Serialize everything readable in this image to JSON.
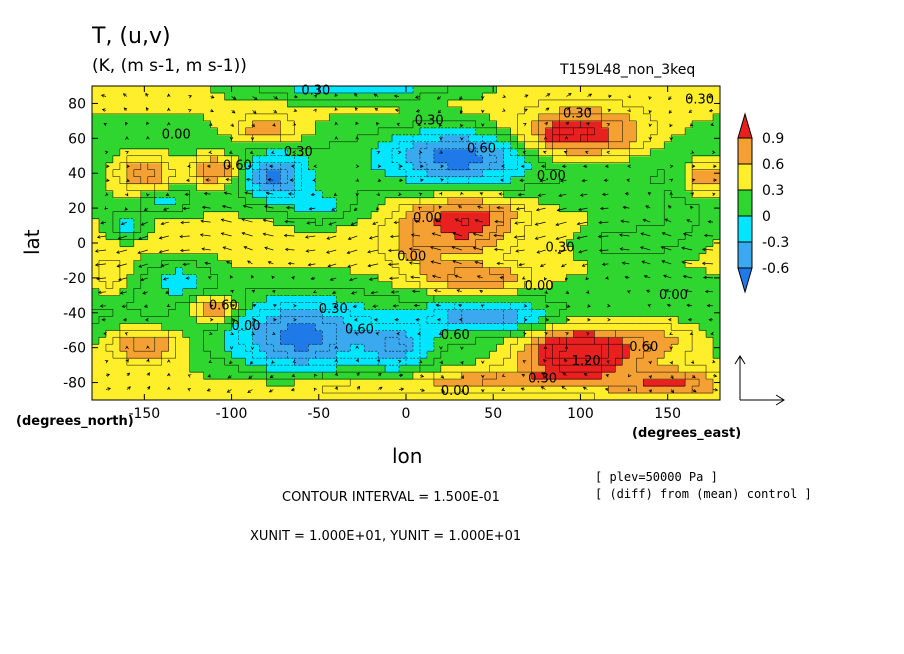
{
  "header": {
    "title": "T, (u,v)",
    "units": "(K, (m s-1, m s-1))",
    "run_id": "T159L48_non_3keq"
  },
  "footer": {
    "contour_interval": "CONTOUR INTERVAL = 1.500E-01",
    "vector_units": "XUNIT = 1.000E+01, YUNIT = 1.000E+01",
    "note_plev": "[ plev=50000 Pa ]",
    "note_diff": "[ (diff) from (mean) control ]"
  },
  "colors": {
    "lt_neg06": "#1f7ae8",
    "neg06_neg03": "#3aa9ef",
    "neg03_0": "#00e6ff",
    "0_03": "#2fd62f",
    "03_06": "#ffef2a",
    "06_09": "#f5a033",
    "gt_09": "#e82020"
  },
  "chart_data": {
    "type": "heatmap",
    "title": "T, (u,v)",
    "subtitle": "(K, (m s-1, m s-1))",
    "xlabel": "lon",
    "ylabel": "lat",
    "x_units": "(degrees_east)",
    "y_units": "(degrees_north)",
    "xlim": [
      -180,
      180
    ],
    "ylim": [
      -90,
      90
    ],
    "x_ticks": [
      -150,
      -100,
      -50,
      0,
      50,
      100,
      150
    ],
    "y_ticks": [
      -80,
      -60,
      -40,
      -20,
      0,
      20,
      40,
      60,
      80
    ],
    "colorbar_levels": [
      "-0.6",
      "-0.3",
      "0",
      "0.3",
      "0.6",
      "0.9"
    ],
    "contour_labels": [
      {
        "text": "0.30",
        "lon": -60,
        "lat": 85
      },
      {
        "text": "0.30",
        "lon": 90,
        "lat": 72
      },
      {
        "text": "0.30",
        "lon": 160,
        "lat": 80
      },
      {
        "text": "0.00",
        "lon": -140,
        "lat": 60
      },
      {
        "text": "0.60",
        "lon": -105,
        "lat": 42
      },
      {
        "text": "0.30",
        "lon": -70,
        "lat": 50
      },
      {
        "text": "0.30",
        "lon": 5,
        "lat": 68
      },
      {
        "text": "0.60",
        "lon": 35,
        "lat": 52
      },
      {
        "text": "0.00",
        "lon": 75,
        "lat": 36
      },
      {
        "text": "0.00",
        "lon": 4,
        "lat": 12
      },
      {
        "text": "0.00",
        "lon": -5,
        "lat": -10
      },
      {
        "text": "0.30",
        "lon": 80,
        "lat": -5
      },
      {
        "text": "0.00",
        "lon": 68,
        "lat": -27
      },
      {
        "text": "0.60",
        "lon": -113,
        "lat": -38
      },
      {
        "text": "0.00",
        "lon": -100,
        "lat": -50
      },
      {
        "text": "0.30",
        "lon": -50,
        "lat": -40
      },
      {
        "text": "0.60",
        "lon": -35,
        "lat": -52
      },
      {
        "text": "0.60",
        "lon": 20,
        "lat": -55
      },
      {
        "text": "0.00",
        "lon": 145,
        "lat": -32
      },
      {
        "text": "0.60",
        "lon": 128,
        "lat": -62
      },
      {
        "text": "1.20",
        "lon": 95,
        "lat": -70
      },
      {
        "text": "0.30",
        "lon": 70,
        "lat": -80
      },
      {
        "text": "0.00",
        "lon": 20,
        "lat": -87
      }
    ]
  }
}
